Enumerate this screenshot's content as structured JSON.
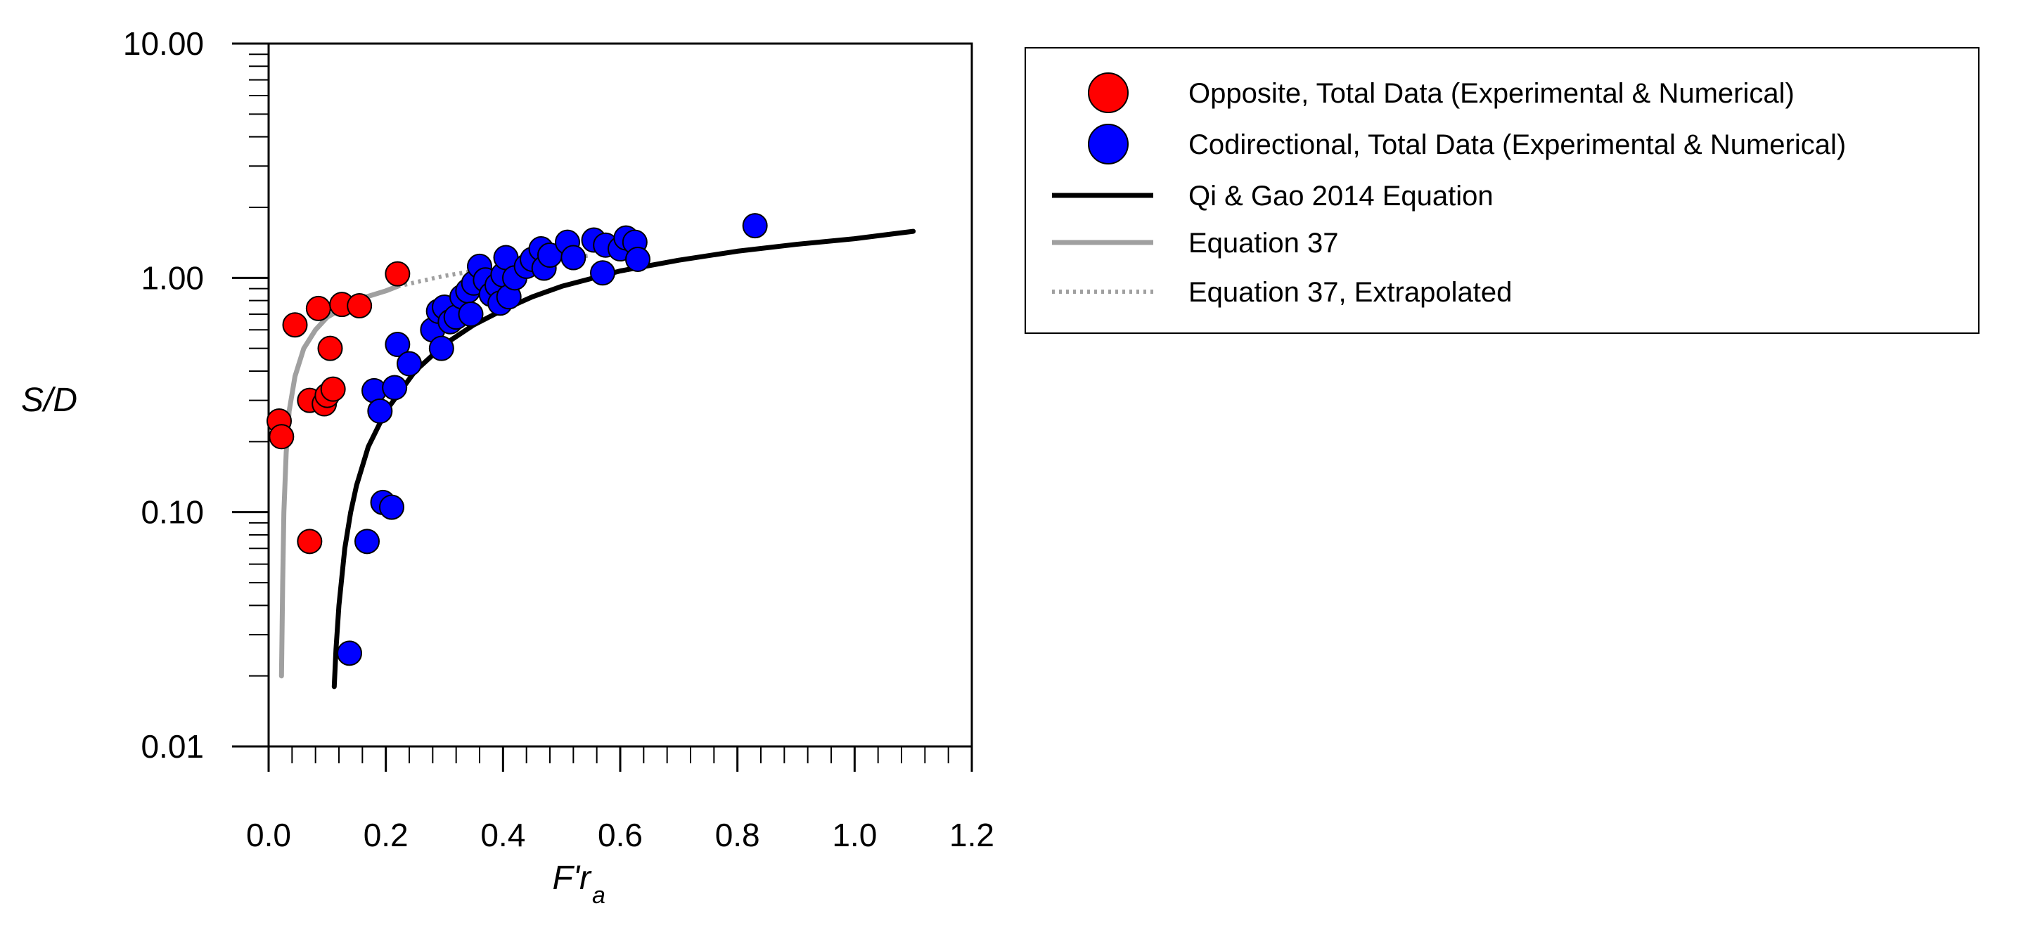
{
  "chart_data": {
    "type": "scatter",
    "title": "",
    "xlabel": "F'r",
    "xlabel_sub": "a",
    "ylabel": "S/D",
    "xlim": [
      0.0,
      1.2
    ],
    "ylim": [
      0.01,
      10.0
    ],
    "yscale": "log",
    "grid": false,
    "legend_position": "right",
    "x_ticks": [
      "0.0",
      "0.2",
      "0.4",
      "0.6",
      "0.8",
      "1.0",
      "1.2"
    ],
    "y_ticks": [
      "0.01",
      "0.10",
      "1.00",
      "10.00"
    ],
    "series": [
      {
        "name": "Opposite, Total Data (Experimental & Numerical)",
        "kind": "scatter",
        "color": "#ff0000",
        "points": [
          [
            0.018,
            0.245
          ],
          [
            0.022,
            0.21
          ],
          [
            0.045,
            0.63
          ],
          [
            0.07,
            0.075
          ],
          [
            0.07,
            0.3
          ],
          [
            0.085,
            0.74
          ],
          [
            0.095,
            0.29
          ],
          [
            0.1,
            0.315
          ],
          [
            0.105,
            0.5
          ],
          [
            0.11,
            0.335
          ],
          [
            0.125,
            0.77
          ],
          [
            0.155,
            0.76
          ],
          [
            0.22,
            1.04
          ]
        ]
      },
      {
        "name": "Codirectional, Total Data (Experimental & Numerical)",
        "kind": "scatter",
        "color": "#0000ff",
        "points": [
          [
            0.138,
            0.025
          ],
          [
            0.168,
            0.075
          ],
          [
            0.18,
            0.33
          ],
          [
            0.19,
            0.27
          ],
          [
            0.195,
            0.11
          ],
          [
            0.21,
            0.105
          ],
          [
            0.215,
            0.34
          ],
          [
            0.22,
            0.52
          ],
          [
            0.24,
            0.43
          ],
          [
            0.28,
            0.6
          ],
          [
            0.29,
            0.72
          ],
          [
            0.295,
            0.5
          ],
          [
            0.3,
            0.75
          ],
          [
            0.31,
            0.65
          ],
          [
            0.32,
            0.68
          ],
          [
            0.33,
            0.83
          ],
          [
            0.34,
            0.88
          ],
          [
            0.345,
            0.7
          ],
          [
            0.35,
            0.95
          ],
          [
            0.36,
            1.12
          ],
          [
            0.37,
            0.98
          ],
          [
            0.38,
            0.85
          ],
          [
            0.39,
            0.93
          ],
          [
            0.395,
            0.78
          ],
          [
            0.4,
            1.03
          ],
          [
            0.405,
            1.22
          ],
          [
            0.41,
            0.83
          ],
          [
            0.42,
            1.0
          ],
          [
            0.44,
            1.12
          ],
          [
            0.45,
            1.2
          ],
          [
            0.465,
            1.33
          ],
          [
            0.47,
            1.1
          ],
          [
            0.48,
            1.25
          ],
          [
            0.51,
            1.42
          ],
          [
            0.52,
            1.22
          ],
          [
            0.555,
            1.45
          ],
          [
            0.57,
            1.05
          ],
          [
            0.575,
            1.38
          ],
          [
            0.6,
            1.33
          ],
          [
            0.61,
            1.48
          ],
          [
            0.625,
            1.42
          ],
          [
            0.63,
            1.2
          ],
          [
            0.83,
            1.67
          ]
        ]
      },
      {
        "name": "Qi & Gao 2014 Equation",
        "kind": "line",
        "color": "#000000",
        "style": "solid",
        "points": [
          [
            0.112,
            0.018
          ],
          [
            0.115,
            0.026
          ],
          [
            0.12,
            0.04
          ],
          [
            0.13,
            0.07
          ],
          [
            0.14,
            0.1
          ],
          [
            0.15,
            0.13
          ],
          [
            0.17,
            0.19
          ],
          [
            0.2,
            0.27
          ],
          [
            0.25,
            0.4
          ],
          [
            0.3,
            0.52
          ],
          [
            0.35,
            0.63
          ],
          [
            0.4,
            0.73
          ],
          [
            0.45,
            0.83
          ],
          [
            0.5,
            0.92
          ],
          [
            0.6,
            1.07
          ],
          [
            0.7,
            1.19
          ],
          [
            0.8,
            1.3
          ],
          [
            0.9,
            1.39
          ],
          [
            1.0,
            1.47
          ],
          [
            1.1,
            1.58
          ]
        ]
      },
      {
        "name": "Equation 37",
        "kind": "line",
        "color": "#a0a0a0",
        "style": "solid",
        "points": [
          [
            0.022,
            0.02
          ],
          [
            0.024,
            0.05
          ],
          [
            0.026,
            0.1
          ],
          [
            0.03,
            0.18
          ],
          [
            0.035,
            0.27
          ],
          [
            0.045,
            0.38
          ],
          [
            0.06,
            0.5
          ],
          [
            0.08,
            0.6
          ],
          [
            0.1,
            0.68
          ],
          [
            0.13,
            0.75
          ],
          [
            0.16,
            0.82
          ],
          [
            0.2,
            0.88
          ],
          [
            0.22,
            0.92
          ]
        ]
      },
      {
        "name": "Equation 37, Extrapolated",
        "kind": "line",
        "color": "#a0a0a0",
        "style": "dotted",
        "points": [
          [
            0.22,
            0.92
          ],
          [
            0.3,
            1.02
          ],
          [
            0.4,
            1.12
          ],
          [
            0.5,
            1.2
          ],
          [
            0.55,
            1.25
          ]
        ]
      }
    ]
  }
}
